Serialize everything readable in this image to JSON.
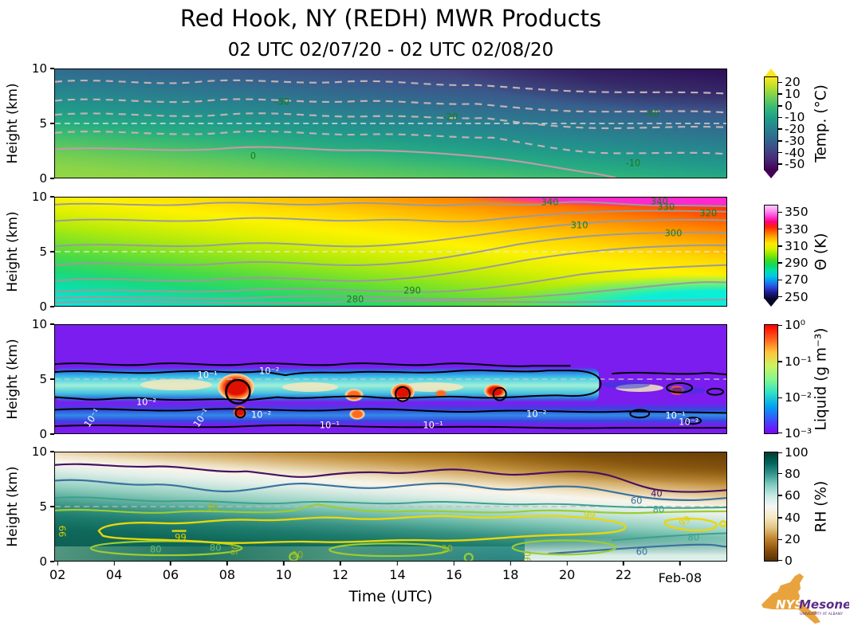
{
  "title": "Red Hook, NY (REDH) MWR Products",
  "subtitle": "02 UTC 02/07/20 - 02 UTC 02/08/20",
  "station": "Red Hook, NY (REDH)",
  "x_axis": {
    "label": "Time (UTC)",
    "ticks": [
      {
        "label": "02",
        "pos": 0.5
      },
      {
        "label": "04",
        "pos": 8.9
      },
      {
        "label": "06",
        "pos": 17.3
      },
      {
        "label": "08",
        "pos": 25.7
      },
      {
        "label": "10",
        "pos": 34.1
      },
      {
        "label": "12",
        "pos": 42.5
      },
      {
        "label": "14",
        "pos": 51.0
      },
      {
        "label": "16",
        "pos": 59.4
      },
      {
        "label": "18",
        "pos": 67.8
      },
      {
        "label": "20",
        "pos": 76.2
      },
      {
        "label": "22",
        "pos": 84.6
      }
    ],
    "date_tick": {
      "label": "Feb-08",
      "pos": 93.0
    }
  },
  "y_axis": {
    "label": "Height (km)",
    "ticks": [
      {
        "label": "10",
        "pos": 0
      },
      {
        "label": "5",
        "pos": 50
      },
      {
        "label": "0",
        "pos": 100
      }
    ]
  },
  "logo": {
    "org": "NYS",
    "name": "Mesonet",
    "sub": "UNIVERSITY AT ALBANY",
    "orange": "#E8A33D",
    "purple": "#5C2D87"
  },
  "chart_data": [
    {
      "type": "heatmap",
      "name": "temperature",
      "units": "°C",
      "colormap": "viridis",
      "ylim_km": [
        0,
        10
      ],
      "xlim_utc": [
        "02:00 02/07/20",
        "02:00 02/08/20"
      ],
      "grid_line": "dashed white line at 5 km",
      "description": "Temperature time-height section; surface ~5-8°C, ~-45°C at 10 km; isotherms descend after ~18 UTC (cooling aloft).",
      "label_color": "#177d17",
      "contour_labels": [
        {
          "text": "-30",
          "value": -30,
          "x": 33.8,
          "y": 30,
          "time_utc": 9.9,
          "height_km": 7.0
        },
        {
          "text": "0",
          "value": 0,
          "x": 29.5,
          "y": 80,
          "time_utc": 8.9,
          "height_km": 2.0
        },
        {
          "text": "-20",
          "value": -20,
          "x": 58.9,
          "y": 44,
          "time_utc": 15.9,
          "height_km": 5.6
        },
        {
          "text": "-40",
          "value": -40,
          "x": 88.9,
          "y": 41,
          "time_utc": 23.0,
          "height_km": 5.9
        },
        {
          "text": "-10",
          "value": -10,
          "x": 86.1,
          "y": 87,
          "time_utc": 22.4,
          "height_km": 1.3
        }
      ],
      "colorbar": {
        "label": "Temp. (°C)",
        "extend": "both",
        "extend_colors": {
          "top": "#fde725",
          "bottom": "#440154"
        },
        "stops": [
          "#440154",
          "#482878",
          "#3e4989",
          "#31688e",
          "#26828e",
          "#1f9e89",
          "#35b779",
          "#6ece58",
          "#b5de2b",
          "#fde725"
        ],
        "ticks": [
          {
            "label": "20",
            "pos": 12.6
          },
          {
            "label": "10",
            "pos": 23.2
          },
          {
            "label": "0",
            "pos": 33.9
          },
          {
            "label": "-10",
            "pos": 44.5
          },
          {
            "label": "-20",
            "pos": 55.2
          },
          {
            "label": "-30",
            "pos": 65.8
          },
          {
            "label": "-40",
            "pos": 76.5
          },
          {
            "label": "-50",
            "pos": 87.1
          }
        ]
      }
    },
    {
      "type": "heatmap",
      "name": "potential-temperature",
      "units": "K",
      "colormap": "spectral-rainbow",
      "ylim_km": [
        0,
        10
      ],
      "xlim_utc": [
        "02:00 02/07/20",
        "02:00 02/08/20"
      ],
      "grid_line": "dashed white line at 5 km",
      "description": "Potential temperature Θ; ~278-280 K near surface, >340 K at 10 km; isentropes descend sharply after ~17 UTC.",
      "label_color": "#177d17",
      "contour_labels": [
        {
          "text": "280",
          "value": 280,
          "x": 44.7,
          "y": 94,
          "time_utc": 12.5,
          "height_km": 0.6
        },
        {
          "text": "290",
          "value": 290,
          "x": 53.2,
          "y": 86,
          "time_utc": 14.5,
          "height_km": 1.4
        },
        {
          "text": "340",
          "value": 340,
          "x": 73.7,
          "y": 4.5,
          "time_utc": 19.4,
          "height_km": 9.6
        },
        {
          "text": "340",
          "value": 340,
          "x": 90.0,
          "y": 3.5,
          "time_utc": 23.3,
          "height_km": 9.7
        },
        {
          "text": "330",
          "value": 330,
          "x": 91.0,
          "y": 9,
          "time_utc": 23.5,
          "height_km": 9.1
        },
        {
          "text": "320",
          "value": 320,
          "x": 97.3,
          "y": 15,
          "time_utc": 25.0,
          "height_km": 8.5
        },
        {
          "text": "310",
          "value": 310,
          "x": 78.1,
          "y": 25.5,
          "time_utc": 20.4,
          "height_km": 7.4
        },
        {
          "text": "300",
          "value": 300,
          "x": 92.1,
          "y": 33,
          "time_utc": 23.8,
          "height_km": 6.7
        }
      ],
      "colorbar": {
        "label": "Θ (K)",
        "extend": "both",
        "extend_colors": {
          "top": "#ffffff",
          "bottom": "#06062a"
        },
        "stops": [
          "#0b0b3b",
          "#1b1b8f",
          "#2a4ae0",
          "#0f8cf0",
          "#00c8e8",
          "#00e0a8",
          "#10d860",
          "#40dc20",
          "#90e800",
          "#d8f000",
          "#ffe800",
          "#ffb400",
          "#ff7000",
          "#ff2800",
          "#ff0080",
          "#ff40d8",
          "#ff90f0",
          "#ffc8fa"
        ],
        "ticks": [
          {
            "label": "350",
            "pos": 14
          },
          {
            "label": "330",
            "pos": 29.4
          },
          {
            "label": "310",
            "pos": 44.8
          },
          {
            "label": "290",
            "pos": 60.2
          },
          {
            "label": "270",
            "pos": 75.6
          },
          {
            "label": "250",
            "pos": 91
          }
        ]
      }
    },
    {
      "type": "heatmap",
      "name": "liquid-water-content",
      "units": "g m⁻³",
      "scale": "log",
      "colormap": "rainbow",
      "ylim_km": [
        0,
        10
      ],
      "xlim_utc": [
        "02:00 02/07/20",
        "02:00 02/08/20"
      ],
      "grid_line": "dashed line at 5 km",
      "description": "Cloud liquid water; layer 3-5 km with cores >0.5 g m⁻³ near 08:30, 14, 16 UTC; shallow layer below 2 km; liquid ends after ~21:30 UTC.",
      "label_color": "#ffffff",
      "contour_labels": [
        {
          "text": "10⁻¹",
          "value": 0.1,
          "x": 22.7,
          "y": 46,
          "time_utc": 7.3,
          "height_km": 5.4
        },
        {
          "text": "10⁻²",
          "value": 0.01,
          "x": 31.9,
          "y": 43,
          "time_utc": 9.5,
          "height_km": 5.7
        },
        {
          "text": "10⁻²",
          "value": 0.01,
          "x": 13.6,
          "y": 71,
          "time_utc": 5.1,
          "height_km": 2.9
        },
        {
          "text": "10⁻¹",
          "value": 0.1,
          "x": 5.6,
          "y": 86,
          "rot": -55,
          "time_utc": 3.2,
          "height_km": 1.4
        },
        {
          "text": "10⁻¹",
          "value": 0.1,
          "x": 21.8,
          "y": 86,
          "rot": -55,
          "time_utc": 7.1,
          "height_km": 1.4
        },
        {
          "text": "10⁻²",
          "value": 0.01,
          "x": 30.7,
          "y": 83,
          "time_utc": 9.2,
          "height_km": 1.7
        },
        {
          "text": "10⁻¹",
          "value": 0.1,
          "x": 40.9,
          "y": 93,
          "time_utc": 11.6,
          "height_km": 0.7
        },
        {
          "text": "10⁻¹",
          "value": 0.1,
          "x": 56.3,
          "y": 93,
          "time_utc": 15.3,
          "height_km": 0.7
        },
        {
          "text": "10⁻²",
          "value": 0.01,
          "x": 71.7,
          "y": 82,
          "time_utc": 18.9,
          "height_km": 1.8
        },
        {
          "text": "10⁻¹",
          "value": 0.1,
          "x": 92.4,
          "y": 84,
          "time_utc": 23.9,
          "height_km": 1.6
        },
        {
          "text": "10⁻²",
          "value": 0.01,
          "x": 94.4,
          "y": 90,
          "time_utc": 24.3,
          "height_km": 1.0
        }
      ],
      "colorbar": {
        "label": "Liquid (g m⁻³)",
        "extend": "none",
        "stops": [
          "#7d03fa",
          "#3a51fb",
          "#00a4f0",
          "#30e1c5",
          "#86f88e",
          "#cdf35f",
          "#ffc33a",
          "#ff5c1c",
          "#ff0000"
        ],
        "ticks": [
          {
            "label": "10⁰",
            "pos": 1
          },
          {
            "label": "10⁻¹",
            "pos": 34
          },
          {
            "label": "10⁻²",
            "pos": 67
          },
          {
            "label": "10⁻³",
            "pos": 99
          }
        ]
      }
    },
    {
      "type": "heatmap",
      "name": "relative-humidity",
      "units": "%",
      "colormap": "BrBG",
      "ylim_km": [
        0,
        10
      ],
      "xlim_utc": [
        "02:00 02/07/20",
        "02:00 02/08/20"
      ],
      "grid_line": "dashed line at 5 km",
      "description": "Relative humidity; moist layer (>90-99%) from ~1-5 km through most of the day, dry (<40%) above 7 km; moist layer thins/descends after ~20 UTC.",
      "label_color": "#9fb519",
      "contour_labels": [
        {
          "text": "99",
          "value": 99,
          "x": 1.2,
          "y": 73,
          "rot": -90,
          "color": "#e0cf00",
          "time_utc": 2.1,
          "height_km": 2.7
        },
        {
          "text": "90",
          "value": 90,
          "x": 23.5,
          "y": 51,
          "color": "#9fb519",
          "time_utc": 7.5,
          "height_km": 4.9
        },
        {
          "text": "99",
          "value": 99,
          "x": 18.7,
          "y": 79,
          "color": "#e0cf00",
          "time_utc": 6.3,
          "height_km": 2.1
        },
        {
          "text": "80",
          "value": 80,
          "x": 15.0,
          "y": 90,
          "color": "#67bd6b",
          "time_utc": 5.5,
          "height_km": 1.0
        },
        {
          "text": "80",
          "value": 80,
          "x": 23.9,
          "y": 88,
          "color": "#67bd6b",
          "time_utc": 7.6,
          "height_km": 1.2
        },
        {
          "text": "90",
          "value": 90,
          "x": 26.8,
          "y": 90,
          "rot": -80,
          "color": "#9fb519",
          "time_utc": 8.3,
          "height_km": 1.0
        },
        {
          "text": "90",
          "value": 90,
          "x": 36.1,
          "y": 95,
          "color": "#9fb519",
          "time_utc": 10.5,
          "height_km": 0.5
        },
        {
          "text": "90",
          "value": 90,
          "x": 58.4,
          "y": 89,
          "color": "#9fb519",
          "time_utc": 15.8,
          "height_km": 1.1
        },
        {
          "text": "90",
          "value": 90,
          "x": 70.4,
          "y": 96,
          "rot": -90,
          "color": "#9fb519",
          "time_utc": 18.6,
          "height_km": 0.4
        },
        {
          "text": "40",
          "value": 40,
          "x": 89.6,
          "y": 38,
          "color": "#471063",
          "time_utc": 23.2,
          "height_km": 6.2
        },
        {
          "text": "60",
          "value": 60,
          "x": 86.6,
          "y": 44.5,
          "color": "#39729e",
          "time_utc": 22.5,
          "height_km": 5.6
        },
        {
          "text": "80",
          "value": 80,
          "x": 89.9,
          "y": 52.6,
          "color": "#3fa08c",
          "time_utc": 23.3,
          "height_km": 4.7
        },
        {
          "text": "99",
          "value": 99,
          "x": 79.6,
          "y": 58,
          "color": "#e0cf00",
          "time_utc": 20.8,
          "height_km": 4.2
        },
        {
          "text": "99",
          "value": 99,
          "x": 93.8,
          "y": 64,
          "rot": -35,
          "color": "#e0cf00",
          "time_utc": 24.2,
          "height_km": 3.6
        },
        {
          "text": "80",
          "value": 80,
          "x": 95.1,
          "y": 79,
          "color": "#3fa08c",
          "time_utc": 24.5,
          "height_km": 2.1
        },
        {
          "text": "60",
          "value": 60,
          "x": 87.4,
          "y": 92,
          "color": "#39729e",
          "time_utc": 22.7,
          "height_km": 0.8
        }
      ],
      "colorbar": {
        "label": "RH (%)",
        "extend": "none",
        "stops": [
          "#543005",
          "#8c510a",
          "#bf812d",
          "#dfc27d",
          "#f6e8c3",
          "#f5f5f5",
          "#c7eae5",
          "#80cdc1",
          "#35978f",
          "#01665e",
          "#003c30"
        ],
        "ticks": [
          {
            "label": "100",
            "pos": 1
          },
          {
            "label": "80",
            "pos": 20
          },
          {
            "label": "60",
            "pos": 40
          },
          {
            "label": "40",
            "pos": 60
          },
          {
            "label": "20",
            "pos": 80
          },
          {
            "label": "0",
            "pos": 99
          }
        ]
      }
    }
  ]
}
